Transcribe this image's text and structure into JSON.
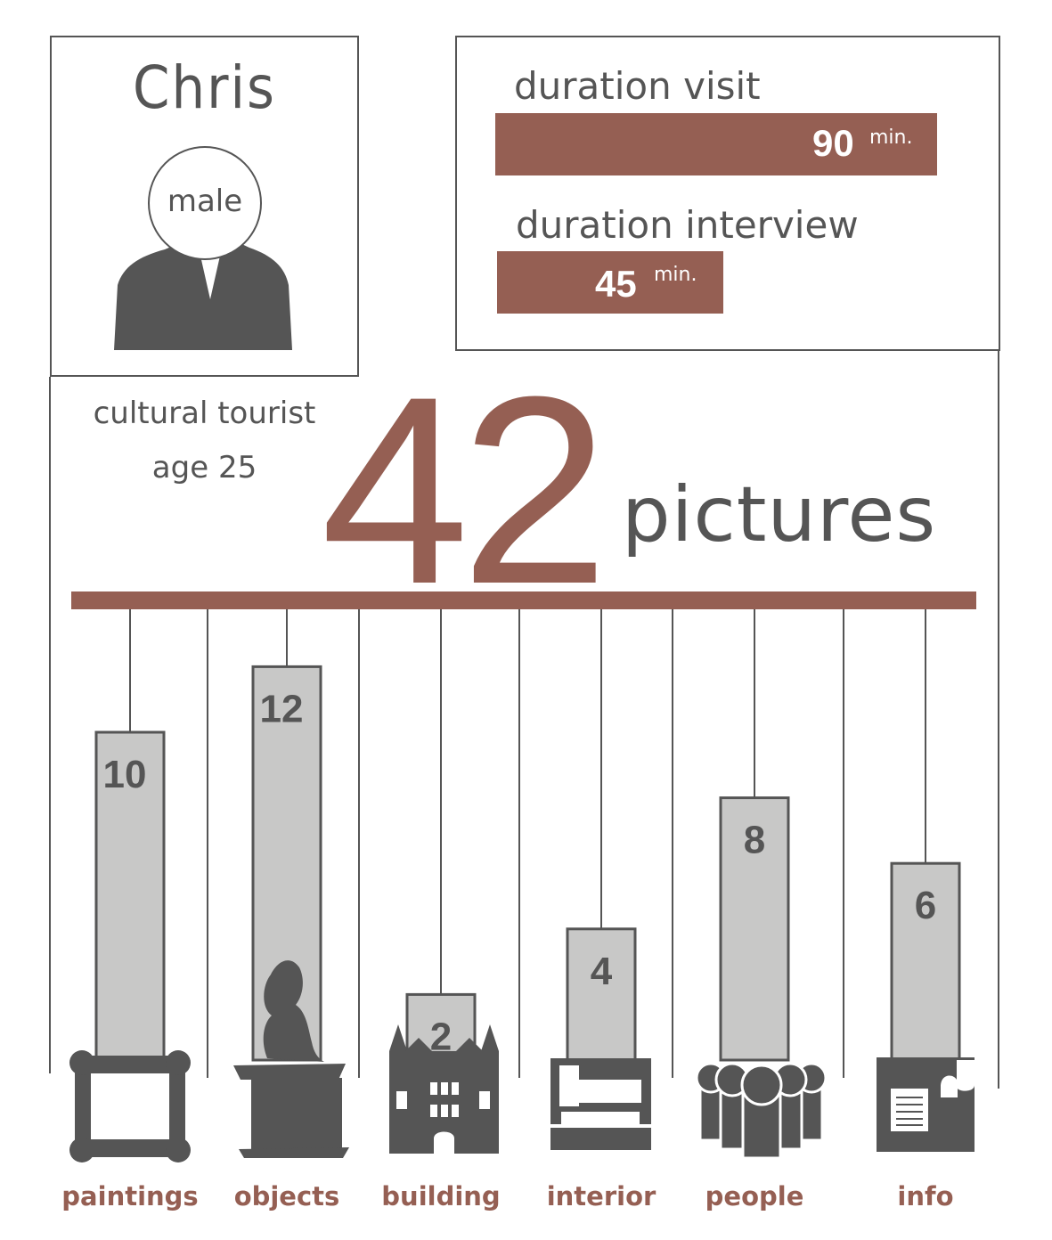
{
  "person": {
    "name": "Chris",
    "gender": "male",
    "type": "cultural tourist",
    "age": "age 25"
  },
  "durations": {
    "visit_label": "duration visit",
    "visit_value": "90",
    "visit_unit": "min.",
    "interview_label": "duration interview",
    "interview_value": "45",
    "interview_unit": "min."
  },
  "total": {
    "value": "42",
    "unit": "pictures"
  },
  "colors": {
    "accent": "#955f53",
    "dark": "#555555",
    "bar": "#c8c8c7"
  },
  "icons": [
    "frame-icon",
    "statue-icon",
    "building-icon",
    "interior-icon",
    "people-icon",
    "info-icon"
  ],
  "chart_data": {
    "type": "bar",
    "categories": [
      "paintings",
      "objects",
      "building",
      "interior",
      "people",
      "info"
    ],
    "values": [
      10,
      12,
      2,
      4,
      8,
      6
    ],
    "title": "",
    "xlabel": "",
    "ylabel": ""
  }
}
